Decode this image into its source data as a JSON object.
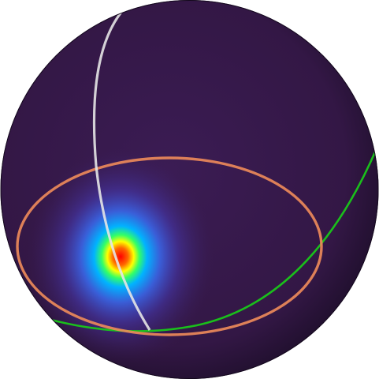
{
  "figure": {
    "kind": "sphere-intensity-map",
    "background_color": "#ffffff",
    "sphere_base_color": "#331745",
    "sphere_edge_color": "#1a0d26",
    "hotspot": {
      "colormap": [
        "#ff0000",
        "#ffff00",
        "#00ff80",
        "#0080ff",
        "#4b4bd6"
      ],
      "center_color": "#ff0000"
    },
    "curves": [
      {
        "name": "white-meridian-curve",
        "color": "#e6e6e6"
      },
      {
        "name": "orange-ellipse-curve",
        "color": "#f08c5a"
      },
      {
        "name": "green-great-circle-curve",
        "color": "#19c819"
      }
    ]
  }
}
